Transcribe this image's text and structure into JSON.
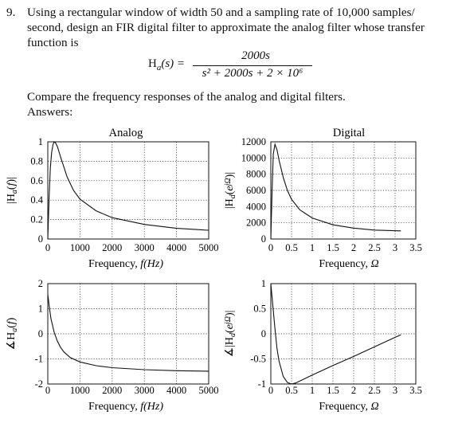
{
  "problem": {
    "number": "9.",
    "text": "Using a rectangular window of width 50 and a sampling rate of 10,000 samples/ second, design an FIR digital filter to approximate the analog filter whose transfer function is",
    "equation": {
      "lhs": "H",
      "lhs_sub": "a",
      "lhs_arg": "(s) =",
      "numerator": "2000s",
      "denominator": "s² + 2000s + 2 × 10⁶"
    },
    "compare": "Compare the frequency responses of the analog and digital filters.",
    "answers": "Answers:"
  },
  "chart_data": [
    {
      "type": "line",
      "title": "Analog",
      "ylabel": "|Ha(f)|",
      "xlabel": "Frequency, f(Hz)",
      "xlim": [
        0,
        5000
      ],
      "ylim": [
        0,
        1
      ],
      "x_ticks": [
        "0",
        "1000",
        "2000",
        "3000",
        "4000",
        "5000"
      ],
      "y_ticks": [
        "0",
        "0.2",
        "0.4",
        "0.6",
        "0.8",
        "1"
      ],
      "grid": true,
      "x": [
        0,
        40,
        80,
        120,
        160,
        200,
        240,
        300,
        400,
        500,
        600,
        800,
        1000,
        1500,
        2000,
        3000,
        4000,
        5000
      ],
      "y": [
        0,
        0.42,
        0.73,
        0.89,
        0.97,
        1.0,
        0.99,
        0.95,
        0.84,
        0.74,
        0.64,
        0.5,
        0.41,
        0.29,
        0.22,
        0.15,
        0.11,
        0.09
      ]
    },
    {
      "type": "line",
      "title": "Digital",
      "ylabel": "|Hd(e^jΩ)|",
      "xlabel": "Frequency, Ω",
      "xlim": [
        0,
        3.5
      ],
      "ylim": [
        0,
        12000
      ],
      "x_ticks": [
        "0",
        "0.5",
        "1",
        "1.5",
        "2",
        "2.5",
        "3",
        "3.5"
      ],
      "y_ticks": [
        "0",
        "2000",
        "4000",
        "6000",
        "8000",
        "10000",
        "12000"
      ],
      "grid": true,
      "x": [
        0,
        0.03,
        0.06,
        0.1,
        0.15,
        0.2,
        0.3,
        0.4,
        0.5,
        0.7,
        1.0,
        1.5,
        2.0,
        2.5,
        3.14
      ],
      "y": [
        0,
        6000,
        10500,
        11700,
        11000,
        9700,
        7600,
        6000,
        4900,
        3600,
        2600,
        1750,
        1350,
        1100,
        1000
      ]
    },
    {
      "type": "line",
      "title": "",
      "ylabel": "∡Ha(f)",
      "xlabel": "Frequency, f(Hz)",
      "xlim": [
        0,
        5000
      ],
      "ylim": [
        -2,
        2
      ],
      "x_ticks": [
        "0",
        "1000",
        "2000",
        "3000",
        "4000",
        "5000"
      ],
      "y_ticks": [
        "-2",
        "-1",
        "0",
        "1",
        "2"
      ],
      "grid": true,
      "x": [
        0,
        50,
        100,
        200,
        300,
        400,
        500,
        700,
        1000,
        1500,
        2000,
        3000,
        4000,
        5000
      ],
      "y": [
        1.57,
        1.05,
        0.6,
        0.05,
        -0.3,
        -0.55,
        -0.72,
        -0.95,
        -1.12,
        -1.27,
        -1.35,
        -1.43,
        -1.47,
        -1.49
      ]
    },
    {
      "type": "line",
      "title": "",
      "ylabel": "∡|Hd(e^jΩ)|",
      "xlabel": "Frequency, Ω",
      "xlim": [
        0,
        3.5
      ],
      "ylim": [
        -1,
        1
      ],
      "x_ticks": [
        "0",
        "0.5",
        "1",
        "1.5",
        "2",
        "2.5",
        "3",
        "3.5"
      ],
      "y_ticks": [
        "-1",
        "-0.5",
        "0",
        "0.5",
        "1"
      ],
      "grid": true,
      "x": [
        0,
        0.05,
        0.1,
        0.15,
        0.2,
        0.3,
        0.4,
        0.5,
        0.6,
        0.8,
        1.0,
        1.5,
        2.0,
        2.5,
        3.0,
        3.14
      ],
      "y": [
        1.0,
        0.55,
        0.1,
        -0.3,
        -0.55,
        -0.85,
        -0.97,
        -1.0,
        -0.98,
        -0.9,
        -0.82,
        -0.63,
        -0.45,
        -0.26,
        -0.07,
        -0.02
      ]
    }
  ]
}
